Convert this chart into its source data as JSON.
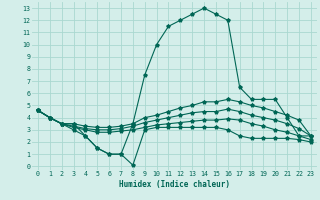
{
  "xlabel": "Humidex (Indice chaleur)",
  "bg_color": "#d4eeea",
  "grid_color": "#aad8d0",
  "line_color": "#006655",
  "xlim": [
    -0.5,
    23.5
  ],
  "ylim": [
    -0.3,
    13.5
  ],
  "xticks": [
    0,
    1,
    2,
    3,
    4,
    5,
    6,
    7,
    8,
    9,
    10,
    11,
    12,
    13,
    14,
    15,
    16,
    17,
    18,
    19,
    20,
    21,
    22,
    23
  ],
  "yticks": [
    0,
    1,
    2,
    3,
    4,
    5,
    6,
    7,
    8,
    9,
    10,
    11,
    12,
    13
  ],
  "x": [
    0,
    1,
    2,
    3,
    4,
    5,
    6,
    7,
    8,
    9,
    10,
    11,
    12,
    13,
    14,
    15,
    16,
    17,
    18,
    19,
    20,
    21,
    22,
    23
  ],
  "line_max": [
    4.6,
    4.0,
    3.5,
    3.5,
    2.5,
    1.5,
    1.0,
    1.0,
    3.5,
    7.5,
    10.0,
    11.5,
    12.0,
    12.5,
    13.0,
    12.5,
    12.0,
    6.5,
    5.5,
    5.5,
    5.5,
    4.0,
    2.5,
    2.5
  ],
  "line_p75": [
    4.6,
    4.0,
    3.5,
    3.5,
    3.3,
    3.2,
    3.2,
    3.3,
    3.5,
    4.0,
    4.2,
    4.5,
    4.8,
    5.0,
    5.3,
    5.3,
    5.5,
    5.3,
    5.0,
    4.8,
    4.5,
    4.2,
    3.8,
    2.5
  ],
  "line_median": [
    4.6,
    4.0,
    3.5,
    3.3,
    3.1,
    3.0,
    3.0,
    3.1,
    3.3,
    3.6,
    3.8,
    4.0,
    4.2,
    4.4,
    4.5,
    4.5,
    4.7,
    4.5,
    4.2,
    4.0,
    3.8,
    3.5,
    3.1,
    2.5
  ],
  "line_p25": [
    4.6,
    4.0,
    3.5,
    3.2,
    3.0,
    2.8,
    2.8,
    2.9,
    3.0,
    3.2,
    3.4,
    3.5,
    3.6,
    3.7,
    3.8,
    3.8,
    3.9,
    3.8,
    3.5,
    3.3,
    3.0,
    2.8,
    2.5,
    2.2
  ],
  "line_min": [
    4.6,
    4.0,
    3.5,
    3.0,
    2.5,
    1.5,
    1.0,
    1.0,
    0.1,
    3.0,
    3.2,
    3.2,
    3.2,
    3.2,
    3.2,
    3.2,
    3.0,
    2.5,
    2.3,
    2.3,
    2.3,
    2.3,
    2.2,
    2.0
  ]
}
